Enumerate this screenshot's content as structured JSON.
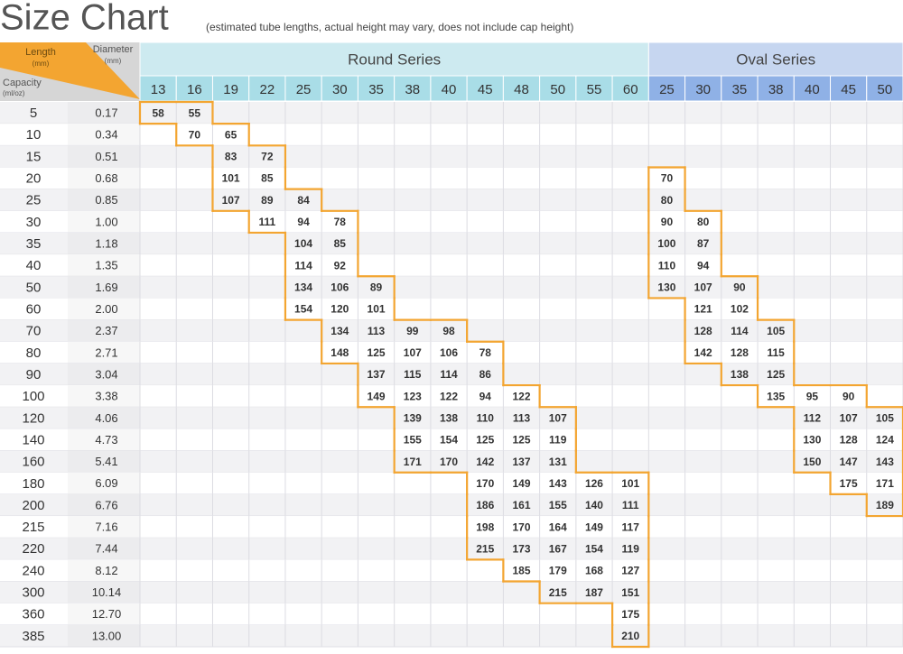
{
  "header": {
    "title": "Size Chart",
    "subtitle": "(estimated tube lengths, actual height may vary, does not include cap height)"
  },
  "table": {
    "corner": {
      "length": "Length",
      "length_unit": "(mm)",
      "diameter": "Diameter",
      "diameter_unit": "(mm)",
      "capacity": "Capacity",
      "capacity_unit": "(ml/oz)"
    },
    "groups": [
      {
        "name": "Round Series",
        "columns": [
          13,
          16,
          19,
          22,
          25,
          30,
          35,
          38,
          40,
          45,
          48,
          50,
          55,
          60
        ]
      },
      {
        "name": "Oval Series",
        "columns": [
          25,
          30,
          35,
          38,
          40,
          45,
          50
        ]
      }
    ],
    "rows": [
      {
        "ml": 5,
        "oz": "0.17",
        "values": [
          [
            58,
            55,
            null,
            null,
            null,
            null,
            null,
            null,
            null,
            null,
            null,
            null,
            null,
            null
          ],
          [
            null,
            null,
            null,
            null,
            null,
            null,
            null
          ]
        ]
      },
      {
        "ml": 10,
        "oz": "0.34",
        "values": [
          [
            null,
            70,
            65,
            null,
            null,
            null,
            null,
            null,
            null,
            null,
            null,
            null,
            null,
            null
          ],
          [
            null,
            null,
            null,
            null,
            null,
            null,
            null
          ]
        ]
      },
      {
        "ml": 15,
        "oz": "0.51",
        "values": [
          [
            null,
            null,
            83,
            72,
            null,
            null,
            null,
            null,
            null,
            null,
            null,
            null,
            null,
            null
          ],
          [
            null,
            null,
            null,
            null,
            null,
            null,
            null
          ]
        ]
      },
      {
        "ml": 20,
        "oz": "0.68",
        "values": [
          [
            null,
            null,
            101,
            85,
            null,
            null,
            null,
            null,
            null,
            null,
            null,
            null,
            null,
            null
          ],
          [
            70,
            null,
            null,
            null,
            null,
            null,
            null
          ]
        ]
      },
      {
        "ml": 25,
        "oz": "0.85",
        "values": [
          [
            null,
            null,
            107,
            89,
            84,
            null,
            null,
            null,
            null,
            null,
            null,
            null,
            null,
            null
          ],
          [
            80,
            null,
            null,
            null,
            null,
            null,
            null
          ]
        ]
      },
      {
        "ml": 30,
        "oz": "1.00",
        "values": [
          [
            null,
            null,
            null,
            111,
            94,
            78,
            null,
            null,
            null,
            null,
            null,
            null,
            null,
            null
          ],
          [
            90,
            80,
            null,
            null,
            null,
            null,
            null
          ]
        ]
      },
      {
        "ml": 35,
        "oz": "1.18",
        "values": [
          [
            null,
            null,
            null,
            null,
            104,
            85,
            null,
            null,
            null,
            null,
            null,
            null,
            null,
            null
          ],
          [
            100,
            87,
            null,
            null,
            null,
            null,
            null
          ]
        ]
      },
      {
        "ml": 40,
        "oz": "1.35",
        "values": [
          [
            null,
            null,
            null,
            null,
            114,
            92,
            null,
            null,
            null,
            null,
            null,
            null,
            null,
            null
          ],
          [
            110,
            94,
            null,
            null,
            null,
            null,
            null
          ]
        ]
      },
      {
        "ml": 50,
        "oz": "1.69",
        "values": [
          [
            null,
            null,
            null,
            null,
            134,
            106,
            89,
            null,
            null,
            null,
            null,
            null,
            null,
            null
          ],
          [
            130,
            107,
            90,
            null,
            null,
            null,
            null
          ]
        ]
      },
      {
        "ml": 60,
        "oz": "2.00",
        "values": [
          [
            null,
            null,
            null,
            null,
            154,
            120,
            101,
            null,
            null,
            null,
            null,
            null,
            null,
            null
          ],
          [
            null,
            121,
            102,
            null,
            null,
            null,
            null
          ]
        ]
      },
      {
        "ml": 70,
        "oz": "2.37",
        "values": [
          [
            null,
            null,
            null,
            null,
            null,
            134,
            113,
            99,
            98,
            null,
            null,
            null,
            null,
            null
          ],
          [
            null,
            128,
            114,
            105,
            null,
            null,
            null
          ]
        ]
      },
      {
        "ml": 80,
        "oz": "2.71",
        "values": [
          [
            null,
            null,
            null,
            null,
            null,
            148,
            125,
            107,
            106,
            78,
            null,
            null,
            null,
            null
          ],
          [
            null,
            142,
            128,
            115,
            null,
            null,
            null
          ]
        ]
      },
      {
        "ml": 90,
        "oz": "3.04",
        "values": [
          [
            null,
            null,
            null,
            null,
            null,
            null,
            137,
            115,
            114,
            86,
            null,
            null,
            null,
            null
          ],
          [
            null,
            null,
            138,
            125,
            null,
            null,
            null
          ]
        ]
      },
      {
        "ml": 100,
        "oz": "3.38",
        "values": [
          [
            null,
            null,
            null,
            null,
            null,
            null,
            149,
            123,
            122,
            94,
            122,
            null,
            null,
            null
          ],
          [
            null,
            null,
            null,
            135,
            95,
            90,
            null
          ]
        ]
      },
      {
        "ml": 120,
        "oz": "4.06",
        "values": [
          [
            null,
            null,
            null,
            null,
            null,
            null,
            null,
            139,
            138,
            110,
            113,
            107,
            null,
            null
          ],
          [
            null,
            null,
            null,
            null,
            112,
            107,
            105
          ]
        ]
      },
      {
        "ml": 140,
        "oz": "4.73",
        "values": [
          [
            null,
            null,
            null,
            null,
            null,
            null,
            null,
            155,
            154,
            125,
            125,
            119,
            null,
            null
          ],
          [
            null,
            null,
            null,
            null,
            130,
            128,
            124
          ]
        ]
      },
      {
        "ml": 160,
        "oz": "5.41",
        "values": [
          [
            null,
            null,
            null,
            null,
            null,
            null,
            null,
            171,
            170,
            142,
            137,
            131,
            null,
            null
          ],
          [
            null,
            null,
            null,
            null,
            150,
            147,
            143
          ]
        ]
      },
      {
        "ml": 180,
        "oz": "6.09",
        "values": [
          [
            null,
            null,
            null,
            null,
            null,
            null,
            null,
            null,
            null,
            170,
            149,
            143,
            126,
            101
          ],
          [
            null,
            null,
            null,
            null,
            null,
            175,
            171
          ]
        ]
      },
      {
        "ml": 200,
        "oz": "6.76",
        "values": [
          [
            null,
            null,
            null,
            null,
            null,
            null,
            null,
            null,
            null,
            186,
            161,
            155,
            140,
            111
          ],
          [
            null,
            null,
            null,
            null,
            null,
            null,
            189
          ]
        ]
      },
      {
        "ml": 215,
        "oz": "7.16",
        "values": [
          [
            null,
            null,
            null,
            null,
            null,
            null,
            null,
            null,
            null,
            198,
            170,
            164,
            149,
            117
          ],
          [
            null,
            null,
            null,
            null,
            null,
            null,
            null
          ]
        ]
      },
      {
        "ml": 220,
        "oz": "7.44",
        "values": [
          [
            null,
            null,
            null,
            null,
            null,
            null,
            null,
            null,
            null,
            215,
            173,
            167,
            154,
            119
          ],
          [
            null,
            null,
            null,
            null,
            null,
            null,
            null
          ]
        ]
      },
      {
        "ml": 240,
        "oz": "8.12",
        "values": [
          [
            null,
            null,
            null,
            null,
            null,
            null,
            null,
            null,
            null,
            null,
            185,
            179,
            168,
            127
          ],
          [
            null,
            null,
            null,
            null,
            null,
            null,
            null
          ]
        ]
      },
      {
        "ml": 300,
        "oz": "10.14",
        "values": [
          [
            null,
            null,
            null,
            null,
            null,
            null,
            null,
            null,
            null,
            null,
            null,
            215,
            187,
            151
          ],
          [
            null,
            null,
            null,
            null,
            null,
            null,
            null
          ]
        ]
      },
      {
        "ml": 360,
        "oz": "12.70",
        "values": [
          [
            null,
            null,
            null,
            null,
            null,
            null,
            null,
            null,
            null,
            null,
            null,
            null,
            null,
            175
          ],
          [
            null,
            null,
            null,
            null,
            null,
            null,
            null
          ]
        ]
      },
      {
        "ml": 385,
        "oz": "13.00",
        "values": [
          [
            null,
            null,
            null,
            null,
            null,
            null,
            null,
            null,
            null,
            null,
            null,
            null,
            null,
            210
          ],
          [
            null,
            null,
            null,
            null,
            null,
            null,
            null
          ]
        ]
      }
    ]
  }
}
